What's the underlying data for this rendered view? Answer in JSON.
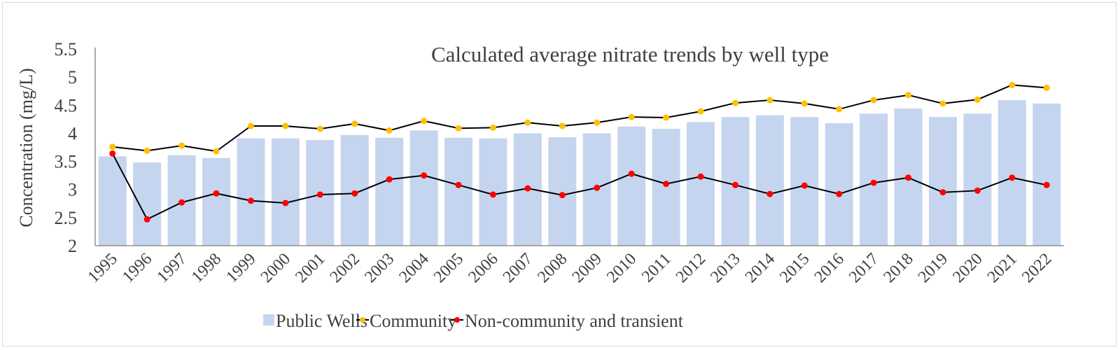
{
  "chart_data": {
    "type": "bar",
    "title": "Calculated average nitrate trends by well type",
    "xlabel": "",
    "ylabel": "Concentration (mg/L)",
    "ylim": [
      2,
      5.5
    ],
    "yticks": [
      "2",
      "2.5",
      "3",
      "3.5",
      "4",
      "4.5",
      "5",
      "5.5"
    ],
    "grid": false,
    "legend_placement": "bottom",
    "categories": [
      "1995",
      "1996",
      "1997",
      "1998",
      "1999",
      "2000",
      "2001",
      "2002",
      "2003",
      "2004",
      "2005",
      "2006",
      "2007",
      "2008",
      "2009",
      "2010",
      "2011",
      "2012",
      "2013",
      "2014",
      "2015",
      "2016",
      "2017",
      "2018",
      "2019",
      "2020",
      "2021",
      "2022"
    ],
    "series": [
      {
        "name": "Public Wells",
        "kind": "bar",
        "color": "#c5d5ef",
        "values": [
          3.59,
          3.48,
          3.61,
          3.56,
          3.91,
          3.91,
          3.88,
          3.97,
          3.92,
          4.05,
          3.92,
          3.91,
          4.0,
          3.93,
          4.0,
          4.12,
          4.08,
          4.2,
          4.29,
          4.32,
          4.29,
          4.18,
          4.35,
          4.44,
          4.29,
          4.35,
          4.59,
          4.53
        ]
      },
      {
        "name": "Community",
        "kind": "line",
        "color": "#ffc000",
        "line_color": "#000000",
        "values": [
          3.76,
          3.69,
          3.78,
          3.68,
          4.13,
          4.13,
          4.08,
          4.17,
          4.05,
          4.22,
          4.09,
          4.1,
          4.19,
          4.13,
          4.19,
          4.29,
          4.28,
          4.39,
          4.54,
          4.59,
          4.53,
          4.43,
          4.59,
          4.68,
          4.53,
          4.6,
          4.86,
          4.81
        ]
      },
      {
        "name": "Non-community and transient",
        "kind": "line",
        "color": "#ff0000",
        "line_color": "#000000",
        "values": [
          3.64,
          2.47,
          2.77,
          2.93,
          2.8,
          2.76,
          2.91,
          2.93,
          3.18,
          3.25,
          3.08,
          2.91,
          3.02,
          2.9,
          3.03,
          3.28,
          3.1,
          3.23,
          3.08,
          2.92,
          3.07,
          2.92,
          3.12,
          3.21,
          2.95,
          2.98,
          3.21,
          3.08
        ]
      }
    ]
  }
}
